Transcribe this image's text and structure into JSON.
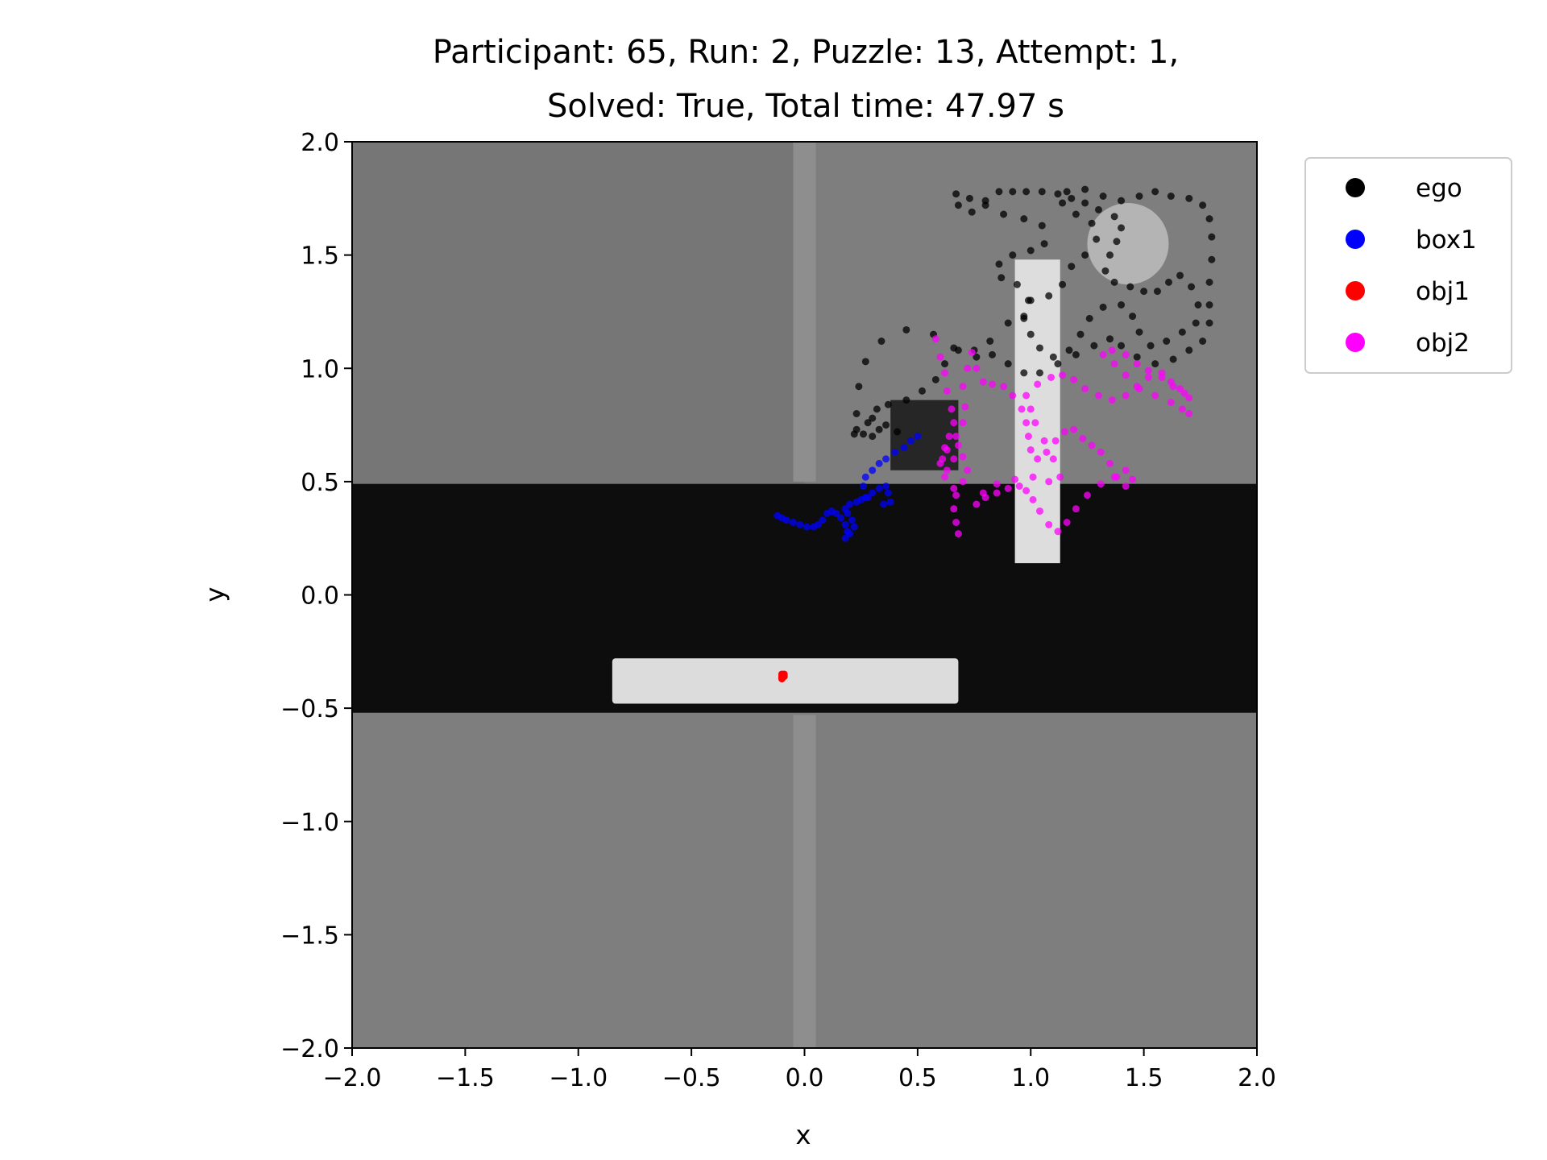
{
  "chart_data": {
    "type": "scatter",
    "title_lines": [
      "Participant: 65, Run: 2, Puzzle: 13, Attempt: 1,",
      "Solved: True, Total time: 47.97 s"
    ],
    "xlabel": "x",
    "ylabel": "y",
    "xlim": [
      -2.0,
      2.0
    ],
    "ylim": [
      -2.0,
      2.0
    ],
    "xticks": [
      -2.0,
      -1.5,
      -1.0,
      -0.5,
      0.0,
      0.5,
      1.0,
      1.5,
      2.0
    ],
    "yticks": [
      -2.0,
      -1.5,
      -1.0,
      -0.5,
      0.0,
      0.5,
      1.0,
      1.5,
      2.0
    ],
    "xtick_labels": [
      "−2.0",
      "−1.5",
      "−1.0",
      "−0.5",
      "0.0",
      "0.5",
      "1.0",
      "1.5",
      "2.0"
    ],
    "ytick_labels": [
      "−2.0",
      "−1.5",
      "−1.0",
      "−0.5",
      "0.0",
      "0.5",
      "1.0",
      "1.5",
      "2.0"
    ],
    "grid": false,
    "legend_position": "outside upper right",
    "background_scene": {
      "floor_color": "#7e7e7e",
      "floor_upper_left_color": "#767676",
      "dark_band": {
        "y_range": [
          -0.52,
          0.49
        ],
        "color": "#0d0d0d"
      },
      "walls": [
        {
          "kind": "top-wall",
          "x_range": [
            -0.05,
            0.05
          ],
          "y_range": [
            0.5,
            2.0
          ],
          "color": "#8e8e8e"
        },
        {
          "kind": "bottom-wall",
          "x_range": [
            -0.05,
            0.05
          ],
          "y_range": [
            -2.0,
            -0.53
          ],
          "color": "#8e8e8e"
        }
      ],
      "platform": {
        "x_range": [
          -0.85,
          0.68
        ],
        "y_range": [
          -0.48,
          -0.28
        ],
        "color": "#dcdcdc"
      },
      "pillar": {
        "x_range": [
          0.93,
          1.13
        ],
        "y_range": [
          0.14,
          1.48
        ],
        "color": "#dddddd"
      },
      "dark_box": {
        "x_range": [
          0.38,
          0.68
        ],
        "y_range": [
          0.55,
          0.86
        ],
        "color": "#262626"
      },
      "disc": {
        "cx": 1.43,
        "cy": 1.55,
        "r": 0.18,
        "color": "#bdbdbd"
      }
    },
    "series": [
      {
        "name": "ego",
        "color": "#000000",
        "points": [
          [
            0.22,
            0.71
          ],
          [
            0.23,
            0.8
          ],
          [
            0.24,
            0.92
          ],
          [
            0.27,
            1.03
          ],
          [
            0.34,
            1.12
          ],
          [
            0.45,
            1.17
          ],
          [
            0.57,
            1.15
          ],
          [
            0.66,
            1.09
          ],
          [
            0.76,
            1.05
          ],
          [
            0.82,
            1.12
          ],
          [
            0.9,
            1.2
          ],
          [
            0.97,
            1.22
          ],
          [
            0.99,
            1.3
          ],
          [
            0.94,
            1.37
          ],
          [
            0.87,
            1.4
          ],
          [
            0.86,
            1.46
          ],
          [
            0.92,
            1.5
          ],
          [
            1.0,
            1.52
          ],
          [
            1.06,
            1.55
          ],
          [
            1.05,
            1.63
          ],
          [
            0.97,
            1.66
          ],
          [
            0.88,
            1.68
          ],
          [
            0.8,
            1.72
          ],
          [
            0.73,
            1.75
          ],
          [
            0.67,
            1.77
          ],
          [
            0.68,
            1.72
          ],
          [
            0.74,
            1.69
          ],
          [
            0.8,
            1.74
          ],
          [
            0.86,
            1.78
          ],
          [
            0.92,
            1.78
          ],
          [
            0.98,
            1.78
          ],
          [
            1.05,
            1.78
          ],
          [
            1.12,
            1.77
          ],
          [
            1.18,
            1.75
          ],
          [
            1.24,
            1.73
          ],
          [
            1.3,
            1.7
          ],
          [
            1.37,
            1.67
          ],
          [
            1.4,
            1.62
          ],
          [
            1.38,
            1.56
          ],
          [
            1.35,
            1.5
          ],
          [
            1.33,
            1.43
          ],
          [
            1.37,
            1.38
          ],
          [
            1.44,
            1.36
          ],
          [
            1.5,
            1.34
          ],
          [
            1.56,
            1.34
          ],
          [
            1.61,
            1.38
          ],
          [
            1.66,
            1.41
          ],
          [
            1.71,
            1.36
          ],
          [
            1.74,
            1.28
          ],
          [
            1.73,
            1.2
          ],
          [
            1.67,
            1.16
          ],
          [
            1.6,
            1.12
          ],
          [
            1.53,
            1.1
          ],
          [
            1.48,
            1.16
          ],
          [
            1.45,
            1.23
          ],
          [
            1.4,
            1.28
          ],
          [
            1.32,
            1.27
          ],
          [
            1.26,
            1.22
          ],
          [
            1.22,
            1.15
          ],
          [
            1.17,
            1.08
          ],
          [
            1.1,
            1.05
          ],
          [
            1.04,
            1.09
          ],
          [
            1.0,
            1.15
          ],
          [
            0.97,
            1.23
          ],
          [
            1.0,
            1.3
          ],
          [
            1.08,
            1.32
          ],
          [
            1.14,
            1.37
          ],
          [
            1.18,
            1.45
          ],
          [
            1.24,
            1.5
          ],
          [
            1.29,
            1.57
          ],
          [
            1.27,
            1.64
          ],
          [
            1.2,
            1.68
          ],
          [
            1.14,
            1.73
          ],
          [
            1.16,
            1.78
          ],
          [
            1.24,
            1.79
          ],
          [
            1.32,
            1.76
          ],
          [
            1.4,
            1.74
          ],
          [
            1.48,
            1.76
          ],
          [
            1.55,
            1.78
          ],
          [
            1.62,
            1.76
          ],
          [
            1.7,
            1.75
          ],
          [
            1.76,
            1.72
          ],
          [
            1.79,
            1.66
          ],
          [
            1.8,
            1.58
          ],
          [
            1.8,
            1.48
          ],
          [
            1.79,
            1.38
          ],
          [
            1.79,
            1.28
          ],
          [
            1.79,
            1.2
          ],
          [
            1.76,
            1.12
          ],
          [
            1.7,
            1.08
          ],
          [
            1.63,
            1.04
          ],
          [
            1.55,
            1.02
          ],
          [
            1.47,
            1.05
          ],
          [
            1.4,
            1.1
          ],
          [
            1.35,
            1.13
          ],
          [
            1.28,
            1.1
          ],
          [
            1.2,
            1.06
          ],
          [
            1.12,
            1.02
          ],
          [
            1.04,
            0.98
          ],
          [
            0.97,
            0.98
          ],
          [
            0.9,
            1.02
          ],
          [
            0.83,
            1.06
          ],
          [
            0.75,
            1.08
          ],
          [
            0.68,
            1.08
          ],
          [
            0.62,
            1.02
          ],
          [
            0.58,
            0.95
          ],
          [
            0.52,
            0.9
          ],
          [
            0.45,
            0.86
          ],
          [
            0.37,
            0.84
          ],
          [
            0.32,
            0.82
          ],
          [
            0.3,
            0.78
          ],
          [
            0.33,
            0.73
          ],
          [
            0.3,
            0.7
          ],
          [
            0.26,
            0.71
          ],
          [
            0.23,
            0.73
          ],
          [
            0.28,
            0.76
          ],
          [
            0.36,
            0.75
          ],
          [
            0.41,
            0.72
          ]
        ]
      },
      {
        "name": "box1",
        "color": "#0000ff",
        "points": [
          [
            -0.12,
            0.35
          ],
          [
            -0.1,
            0.34
          ],
          [
            -0.08,
            0.33
          ],
          [
            -0.05,
            0.32
          ],
          [
            -0.02,
            0.31
          ],
          [
            0.01,
            0.3
          ],
          [
            0.04,
            0.3
          ],
          [
            0.06,
            0.31
          ],
          [
            0.08,
            0.33
          ],
          [
            0.1,
            0.36
          ],
          [
            0.12,
            0.37
          ],
          [
            0.14,
            0.36
          ],
          [
            0.16,
            0.34
          ],
          [
            0.18,
            0.31
          ],
          [
            0.19,
            0.28
          ],
          [
            0.18,
            0.25
          ],
          [
            0.2,
            0.27
          ],
          [
            0.22,
            0.3
          ],
          [
            0.21,
            0.33
          ],
          [
            0.19,
            0.36
          ],
          [
            0.18,
            0.38
          ],
          [
            0.2,
            0.4
          ],
          [
            0.23,
            0.41
          ],
          [
            0.25,
            0.42
          ],
          [
            0.27,
            0.43
          ],
          [
            0.3,
            0.45
          ],
          [
            0.33,
            0.47
          ],
          [
            0.36,
            0.48
          ],
          [
            0.37,
            0.45
          ],
          [
            0.38,
            0.41
          ],
          [
            0.35,
            0.4
          ],
          [
            0.28,
            0.43
          ],
          [
            0.26,
            0.48
          ],
          [
            0.27,
            0.52
          ],
          [
            0.3,
            0.55
          ],
          [
            0.33,
            0.58
          ],
          [
            0.36,
            0.6
          ],
          [
            0.4,
            0.63
          ],
          [
            0.44,
            0.65
          ],
          [
            0.47,
            0.68
          ],
          [
            0.5,
            0.7
          ]
        ]
      },
      {
        "name": "obj1",
        "color": "#ff0000",
        "points": [
          [
            -0.1,
            -0.35
          ],
          [
            -0.1,
            -0.36
          ],
          [
            -0.09,
            -0.36
          ],
          [
            -0.1,
            -0.37
          ],
          [
            -0.09,
            -0.35
          ]
        ]
      },
      {
        "name": "obj2",
        "color": "#ff00ff",
        "points": [
          [
            0.58,
            1.13
          ],
          [
            0.6,
            1.05
          ],
          [
            0.62,
            0.98
          ],
          [
            0.63,
            0.9
          ],
          [
            0.65,
            0.82
          ],
          [
            0.66,
            0.76
          ],
          [
            0.64,
            0.7
          ],
          [
            0.62,
            0.65
          ],
          [
            0.61,
            0.6
          ],
          [
            0.63,
            0.55
          ],
          [
            0.66,
            0.6
          ],
          [
            0.68,
            0.66
          ],
          [
            0.7,
            0.61
          ],
          [
            0.72,
            0.55
          ],
          [
            0.7,
            0.5
          ],
          [
            0.67,
            0.44
          ],
          [
            0.66,
            0.38
          ],
          [
            0.67,
            0.32
          ],
          [
            0.68,
            0.27
          ],
          [
            0.66,
            0.47
          ],
          [
            0.62,
            0.52
          ],
          [
            0.6,
            0.58
          ],
          [
            0.63,
            0.64
          ],
          [
            0.67,
            0.7
          ],
          [
            0.7,
            0.76
          ],
          [
            0.71,
            0.83
          ],
          [
            0.7,
            0.92
          ],
          [
            0.72,
            1.0
          ],
          [
            0.74,
            1.07
          ],
          [
            0.76,
            1.0
          ],
          [
            0.79,
            0.94
          ],
          [
            0.83,
            0.93
          ],
          [
            0.88,
            0.92
          ],
          [
            0.92,
            0.88
          ],
          [
            0.96,
            0.82
          ],
          [
            0.98,
            0.76
          ],
          [
            0.99,
            0.7
          ],
          [
            1.0,
            0.64
          ],
          [
            1.03,
            0.6
          ],
          [
            1.07,
            0.63
          ],
          [
            1.11,
            0.68
          ],
          [
            1.15,
            0.72
          ],
          [
            1.19,
            0.73
          ],
          [
            1.23,
            0.69
          ],
          [
            1.27,
            0.66
          ],
          [
            1.31,
            0.63
          ],
          [
            1.35,
            0.58
          ],
          [
            1.38,
            0.52
          ],
          [
            1.42,
            0.48
          ],
          [
            1.45,
            0.51
          ],
          [
            1.42,
            0.55
          ],
          [
            1.37,
            0.52
          ],
          [
            1.31,
            0.49
          ],
          [
            1.25,
            0.44
          ],
          [
            1.2,
            0.38
          ],
          [
            1.16,
            0.32
          ],
          [
            1.12,
            0.28
          ],
          [
            1.08,
            0.31
          ],
          [
            1.04,
            0.37
          ],
          [
            1.01,
            0.42
          ],
          [
            0.98,
            0.46
          ],
          [
            0.95,
            0.48
          ],
          [
            0.9,
            0.47
          ],
          [
            0.85,
            0.45
          ],
          [
            0.8,
            0.43
          ],
          [
            0.76,
            0.4
          ],
          [
            0.79,
            0.45
          ],
          [
            0.85,
            0.49
          ],
          [
            0.93,
            0.51
          ],
          [
            1.01,
            0.52
          ],
          [
            1.08,
            0.5
          ],
          [
            1.13,
            0.52
          ],
          [
            1.1,
            0.6
          ],
          [
            1.06,
            0.68
          ],
          [
            1.02,
            0.76
          ],
          [
            1.0,
            0.82
          ],
          [
            0.98,
            0.88
          ],
          [
            1.03,
            0.93
          ],
          [
            1.09,
            0.96
          ],
          [
            1.14,
            0.97
          ],
          [
            1.19,
            0.95
          ],
          [
            1.24,
            0.91
          ],
          [
            1.3,
            0.88
          ],
          [
            1.36,
            0.86
          ],
          [
            1.42,
            0.88
          ],
          [
            1.47,
            0.92
          ],
          [
            1.52,
            0.96
          ],
          [
            1.58,
            0.98
          ],
          [
            1.62,
            0.94
          ],
          [
            1.66,
            0.91
          ],
          [
            1.7,
            0.87
          ],
          [
            1.7,
            0.8
          ],
          [
            1.67,
            0.82
          ],
          [
            1.62,
            0.85
          ],
          [
            1.55,
            0.88
          ],
          [
            1.48,
            0.91
          ],
          [
            1.42,
            0.97
          ],
          [
            1.37,
            1.02
          ],
          [
            1.32,
            1.06
          ],
          [
            1.36,
            1.08
          ],
          [
            1.42,
            1.06
          ],
          [
            1.47,
            1.02
          ],
          [
            1.52,
            0.99
          ],
          [
            1.58,
            0.96
          ],
          [
            1.63,
            0.92
          ],
          [
            1.68,
            0.89
          ]
        ]
      }
    ]
  }
}
